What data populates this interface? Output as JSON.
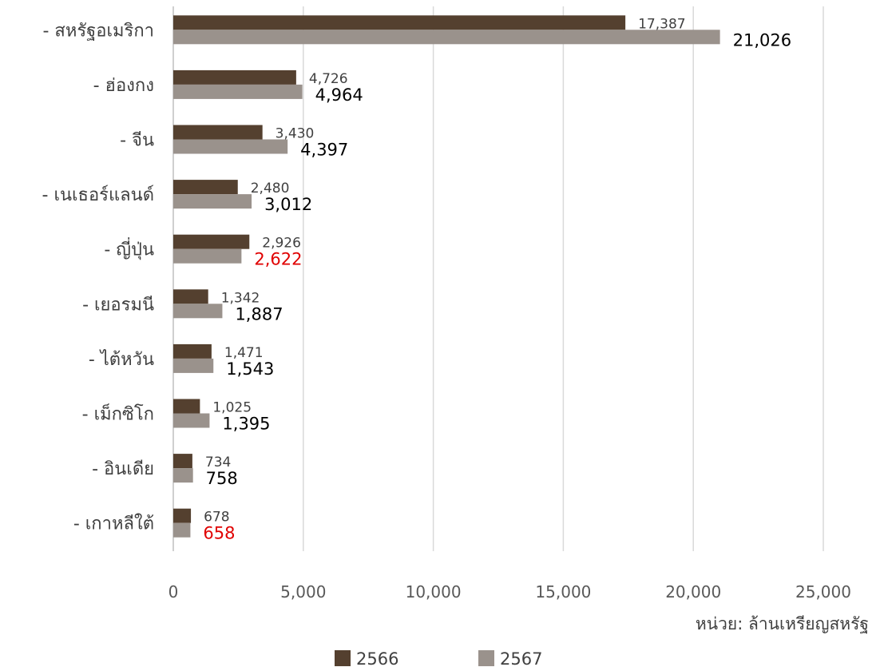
{
  "chart_data": {
    "type": "bar",
    "orientation": "horizontal",
    "categories": [
      "- สหรัฐอเมริกา",
      "- ฮ่องกง",
      "- จีน",
      "- เนเธอร์แลนด์",
      "- ญี่ปุ่น",
      "- เยอรมนี",
      "- ไต้หวัน",
      "- เม็กซิโก",
      "- อินเดีย",
      "- เกาหลีใต้"
    ],
    "series": [
      {
        "name": "2566",
        "color": "#54402f",
        "values": [
          17387,
          4726,
          3430,
          2480,
          2926,
          1342,
          1471,
          1025,
          734,
          678
        ],
        "labels": [
          "17,387",
          "4,726",
          "3,430",
          "2,480",
          "2,926",
          "1,342",
          "1,471",
          "1,025",
          "734",
          "678"
        ]
      },
      {
        "name": "2567",
        "color": "#9a928c",
        "values": [
          21026,
          4964,
          4397,
          3012,
          2622,
          1887,
          1543,
          1395,
          758,
          658
        ],
        "labels": [
          "21,026",
          "4,964",
          "4,397",
          "3,012",
          "2,622",
          "1,887",
          "1,543",
          "1,395",
          "758",
          "658"
        ],
        "label_colors": [
          "#000000",
          "#000000",
          "#000000",
          "#000000",
          "#e00000",
          "#000000",
          "#000000",
          "#000000",
          "#000000",
          "#e00000"
        ]
      }
    ],
    "xlim": [
      0,
      25000
    ],
    "xticks": [
      0,
      5000,
      10000,
      15000,
      20000,
      25000
    ],
    "xtick_labels": [
      "0",
      "5,000",
      "10,000",
      "15,000",
      "20,000",
      "25,000"
    ],
    "grid": true,
    "legend_position": "bottom-center"
  },
  "unit_label": "หน่วย: ล้านเหรียญสหรัฐ",
  "colors": {
    "grid": "#d9d9d9"
  }
}
